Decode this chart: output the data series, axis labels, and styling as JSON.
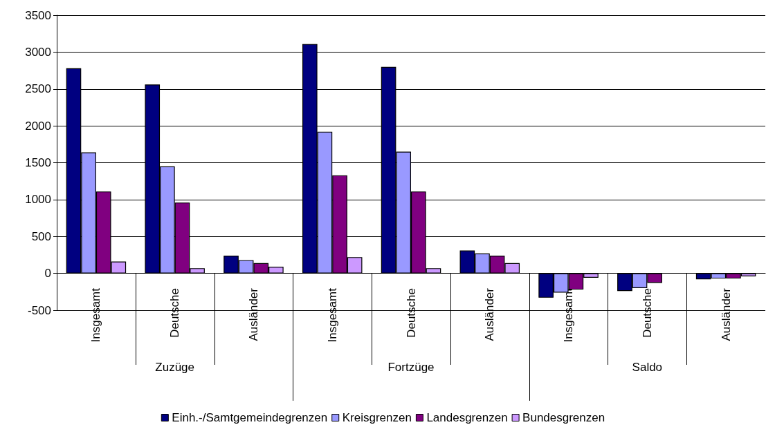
{
  "chart_data": {
    "type": "bar",
    "categories": [
      "Insgesamt",
      "Deutsche",
      "Ausländer",
      "Insgesamt",
      "Deutsche",
      "Ausländer",
      "Insgesamt",
      "Deutsche",
      "Ausländer"
    ],
    "annotations": [
      "Zuzüge",
      "Fortzüge",
      "Saldo"
    ],
    "series": [
      {
        "name": "Einh.-/Samtgemeindegrenzen",
        "color": "#000080",
        "values": [
          2780,
          2560,
          240,
          3110,
          2800,
          310,
          -330,
          -240,
          -80
        ]
      },
      {
        "name": "Kreisgrenzen",
        "color": "#9999ff",
        "values": [
          1640,
          1450,
          180,
          1920,
          1650,
          270,
          -260,
          -200,
          -70
        ]
      },
      {
        "name": "Landesgrenzen",
        "color": "#800080",
        "values": [
          1110,
          960,
          140,
          1330,
          1110,
          240,
          -220,
          -130,
          -70
        ]
      },
      {
        "name": "Bundesgrenzen",
        "color": "#cc99ff",
        "values": [
          160,
          70,
          90,
          220,
          70,
          140,
          -60,
          null,
          -40
        ]
      }
    ],
    "ylim": [
      -500,
      3500
    ],
    "yticks": [
      -500,
      0,
      500,
      1000,
      1500,
      2000,
      2500,
      3000,
      3500
    ],
    "grid": "y",
    "legend": "bottom"
  }
}
